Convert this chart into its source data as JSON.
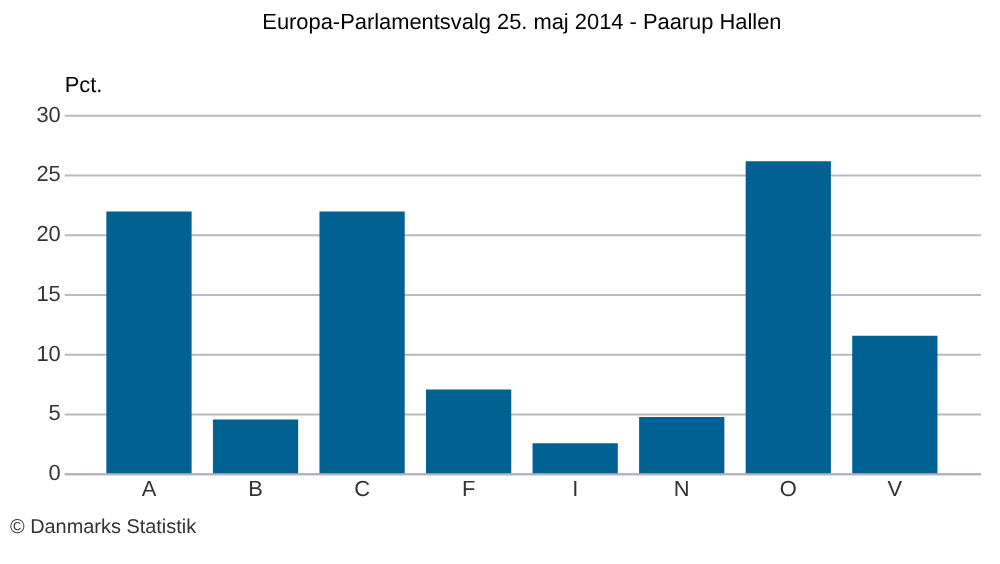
{
  "chart_data": {
    "type": "bar",
    "title": "Europa-Parlamentsvalg 25. maj 2014 - Paarup Hallen",
    "ylabel": "Pct.",
    "categories": [
      "A",
      "B",
      "C",
      "F",
      "I",
      "N",
      "O",
      "V"
    ],
    "values": [
      21.9,
      4.5,
      21.9,
      7.0,
      2.5,
      4.7,
      26.1,
      11.5
    ],
    "color": "#006192",
    "ylim": [
      0,
      30
    ],
    "yticks": [
      0,
      5,
      10,
      15,
      20,
      25,
      30
    ],
    "grid": "y",
    "annotations": [
      "© Danmarks Statistik"
    ]
  }
}
